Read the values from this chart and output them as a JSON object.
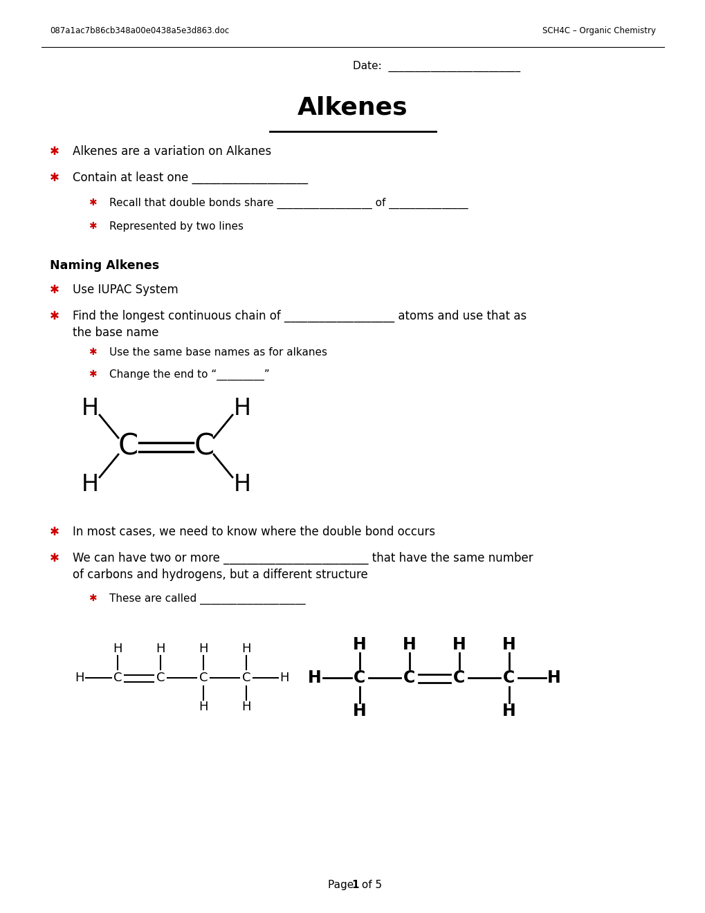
{
  "header_left": "087a1ac7b86cb348a00e0438a5e3d863.doc",
  "header_right": "SCH4C – Organic Chemistry",
  "date_label": "Date:  _________________________",
  "title": "Alkenes",
  "bg_color": "#ffffff",
  "bullet_color": "#cc0000",
  "bullet1": "Alkenes are a variation on Alkanes",
  "bullet2": "Contain at least one ____________________",
  "sub_bullet1": "Recall that double bonds share __________________ of _______________",
  "sub_bullet2": "Represented by two lines",
  "section_naming": "Naming Alkenes",
  "naming_b1": "Use IUPAC System",
  "naming_b2a": "Find the longest continuous chain of ___________________ atoms and use that as",
  "naming_b2b": "the base name",
  "naming_sub1": "Use the same base names as for alkanes",
  "naming_sub2": "Change the end to “_________”",
  "text1": "In most cases, we need to know where the double bond occurs",
  "text2a": "We can have two or more _________________________ that have the same number",
  "text2b": "of carbons and hydrogens, but a different structure",
  "text3": "These are called ____________________",
  "footer_pre": "Page ",
  "footer_bold": "1",
  "footer_post": " of 5"
}
